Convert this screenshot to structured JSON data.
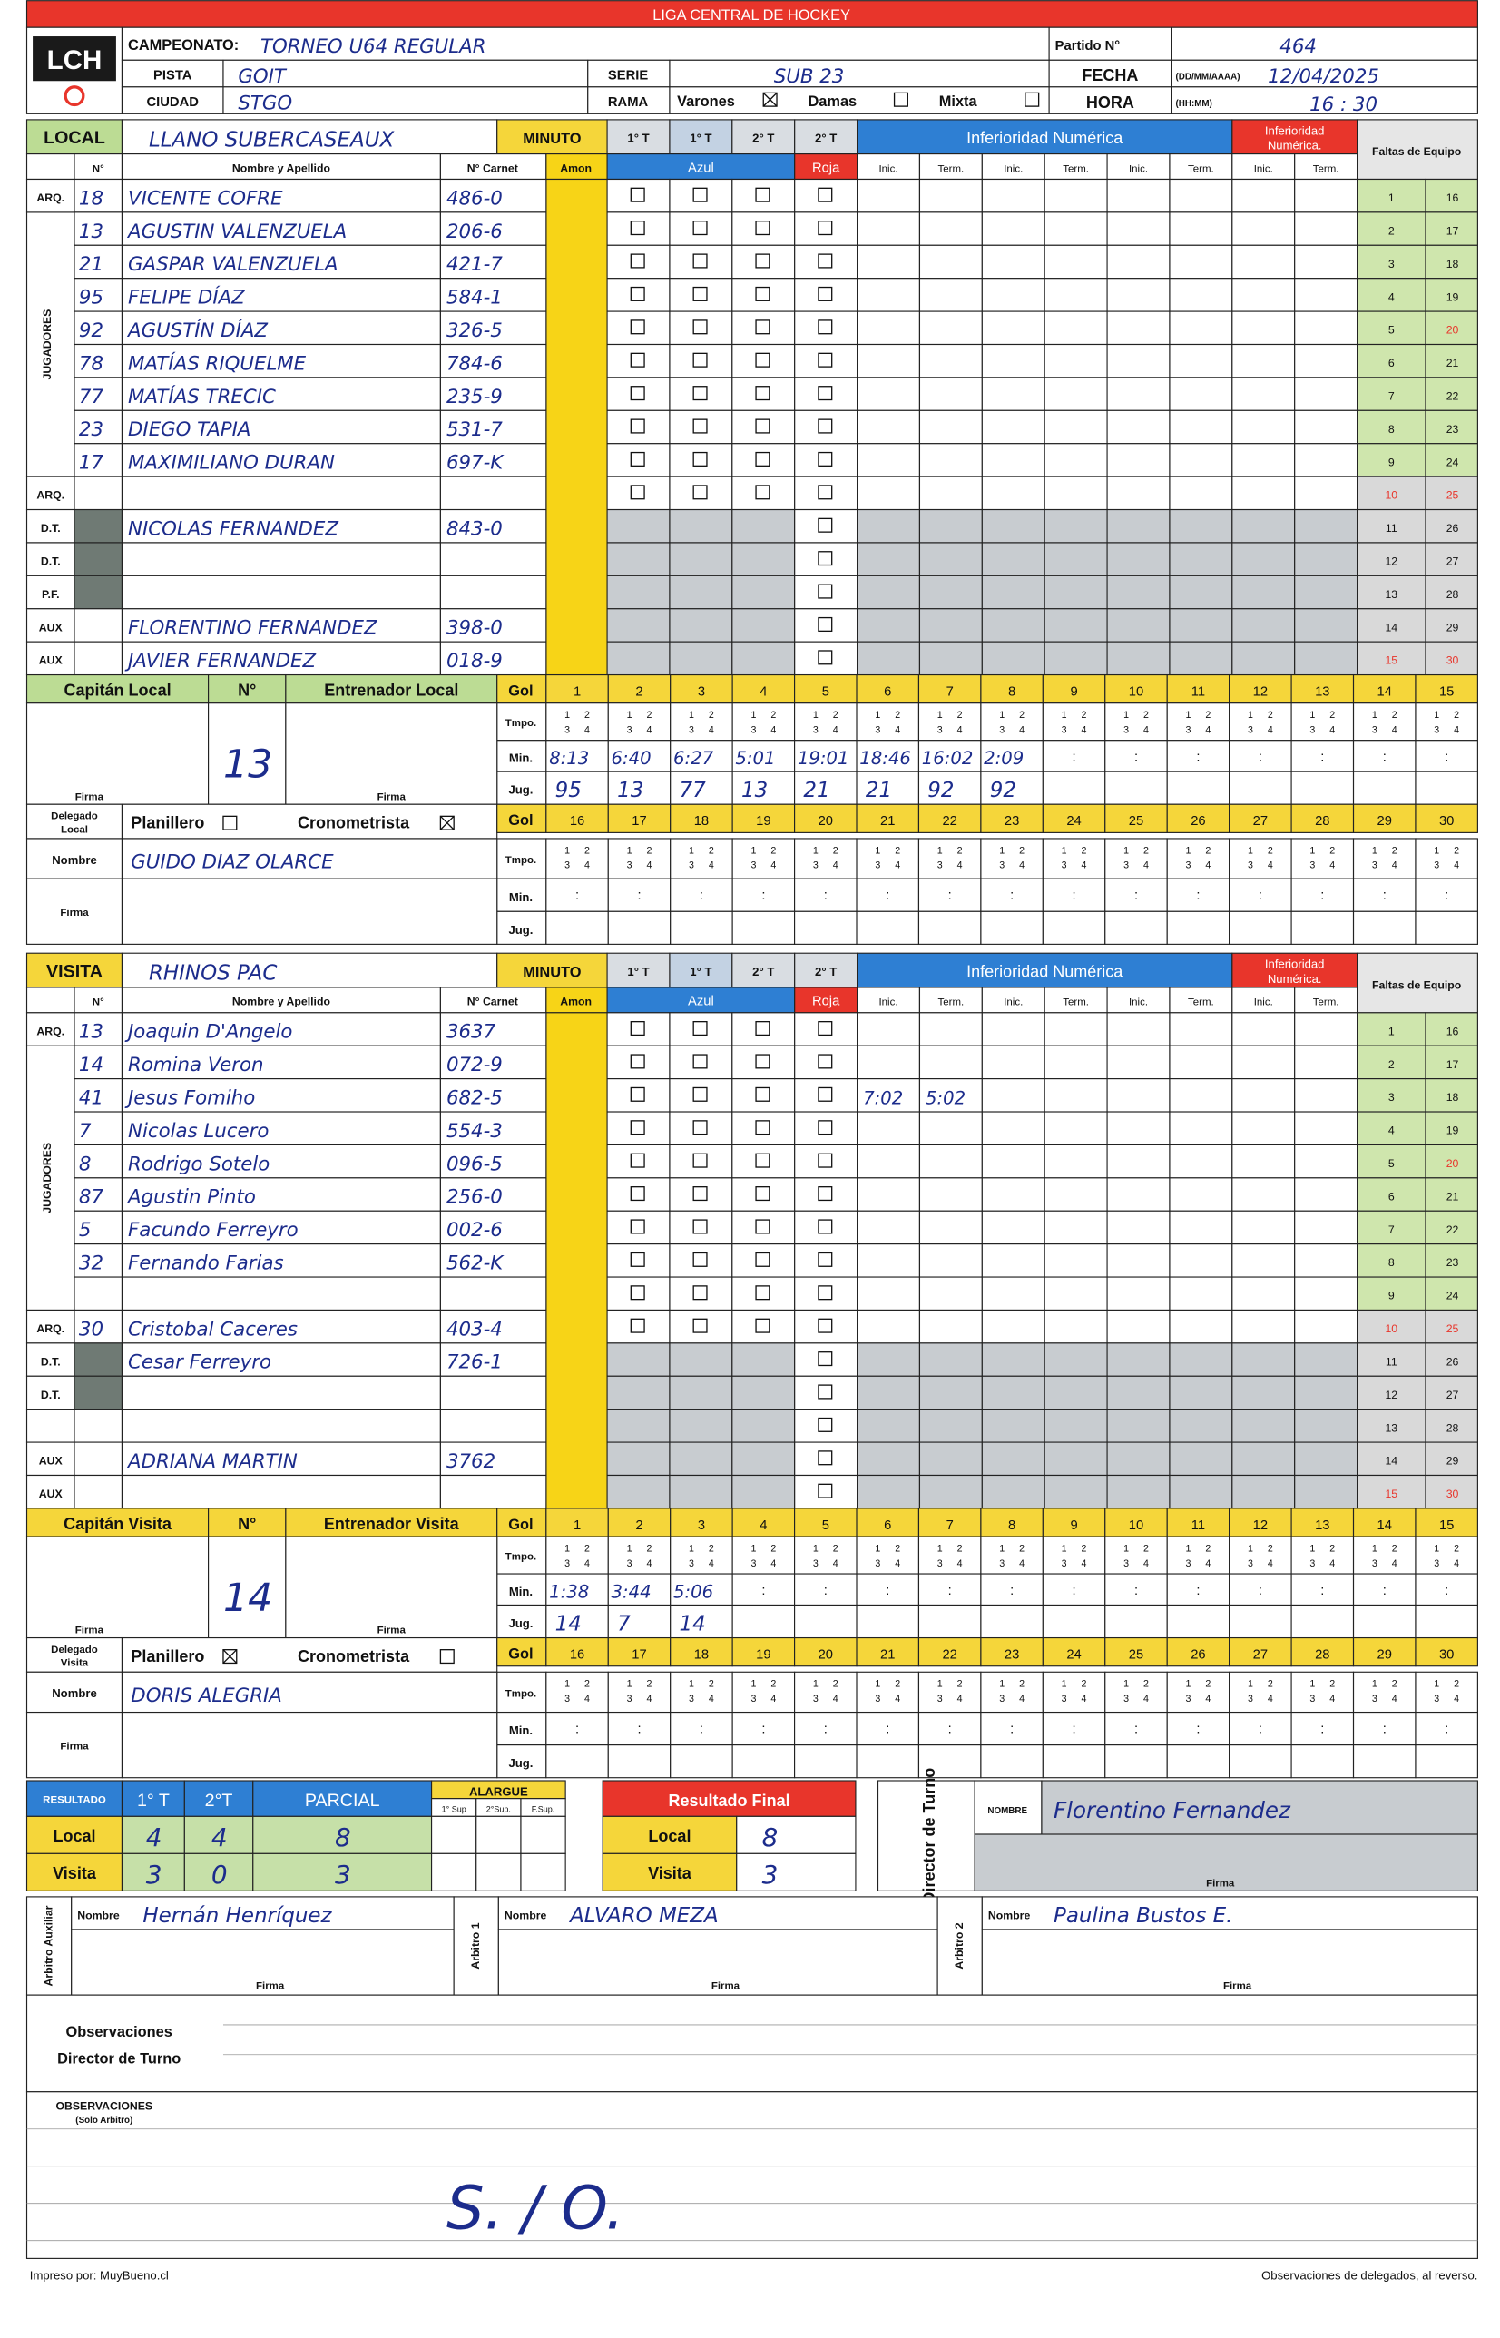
{
  "header": {
    "title": "LIGA CENTRAL DE HOCKEY",
    "logo": "LCH",
    "championship_label": "CAMPEONATO:",
    "championship": "TORNEO U64 REGULAR",
    "match_label": "Partido N°",
    "match_number": "464",
    "venue_label": "PISTA",
    "venue": "GOIT",
    "series_label": "SERIE",
    "series": "SUB 23",
    "date_label": "FECHA",
    "date_format": "(DD/MM/AAAA)",
    "date": "12/04/2025",
    "city_label": "CIUDAD",
    "city": "STGO",
    "branch_label": "RAMA",
    "gender_options": [
      {
        "label": "Varones",
        "checked": true
      },
      {
        "label": "Damas",
        "checked": false
      },
      {
        "label": "Mixta",
        "checked": false
      }
    ],
    "time_label": "HORA",
    "time_format": "(HH:MM)",
    "time": "16 : 30"
  },
  "sheet_labels": {
    "minute": "MINUTO",
    "periods": [
      "1° T",
      "1° T",
      "2° T",
      "2° T"
    ],
    "no": "N°",
    "name_header": "Nombre y Apellido",
    "id_header": "N° Carnet",
    "amon": "Amon",
    "azul": "Azul",
    "roja": "Roja",
    "inferiority": "Inferioridad Numérica",
    "inferiority_red": [
      "Inferioridad",
      "Numérica."
    ],
    "inic": "Inic.",
    "term": "Term.",
    "team_fouls": "Faltas de Equipo",
    "players_group": "JUGADORES",
    "goal": "Gol",
    "time": "Tmpo.",
    "min": "Min.",
    "player": "Jug.",
    "quarters": [
      1,
      2,
      3,
      4
    ],
    "colon": ":",
    "signature": "Firma",
    "nombre": "Nombre",
    "numbers": [
      1,
      2,
      3,
      4,
      5,
      6,
      7,
      8,
      9,
      10,
      11,
      12,
      13,
      14,
      15,
      16,
      17,
      18,
      19,
      20,
      21,
      22,
      23,
      24,
      25,
      26,
      27,
      28,
      29,
      30
    ]
  },
  "local": {
    "label": "LOCAL",
    "color": "#bcdc94",
    "team": "LLANO SUBERCASEAUX",
    "rows": [
      {
        "role": "ARQ.",
        "number": 18,
        "name": "VICENTE COFRE",
        "id": "486-0"
      },
      {
        "number": 13,
        "name": "AGUSTIN VALENZUELA",
        "id": "206-6"
      },
      {
        "number": 21,
        "name": "GASPAR VALENZUELA",
        "id": "421-7"
      },
      {
        "number": 95,
        "name": "FELIPE DÍAZ",
        "id": "584-1"
      },
      {
        "number": 92,
        "name": "AGUSTÍN DÍAZ",
        "id": "326-5"
      },
      {
        "number": 78,
        "name": "MATÍAS RIQUELME",
        "id": "784-6"
      },
      {
        "number": 77,
        "name": "MATÍAS TRECIC",
        "id": "235-9"
      },
      {
        "number": 23,
        "name": "DIEGO TAPIA",
        "id": "531-7"
      },
      {
        "number": 17,
        "name": "MAXIMILIANO DURAN",
        "id": "697-K"
      },
      {
        "role": "ARQ."
      },
      {
        "role": "D.T.",
        "name": "NICOLAS FERNANDEZ",
        "id": "843-0"
      },
      {
        "role": "D.T."
      },
      {
        "role": "P.F."
      },
      {
        "role": "AUX",
        "name": "FLORENTINO FERNANDEZ",
        "id": "398-0"
      },
      {
        "role": "AUX",
        "name": "JAVIER FERNANDEZ",
        "id": "018-9"
      }
    ],
    "captain_label": "Capitán Local",
    "coach_label": "Entrenador Local",
    "captain_number": 13,
    "goals": {
      "min": [
        "8:13",
        "6:40",
        "6:27",
        "5:01",
        "19:01",
        "18:46",
        "16:02",
        "2:09"
      ],
      "player": [
        95,
        13,
        77,
        13,
        21,
        21,
        92,
        92
      ]
    },
    "delegate_label": [
      "Delegado",
      "Local"
    ],
    "staff": [
      {
        "label": "Planillero",
        "checked": false
      },
      {
        "label": "Cronometrista",
        "checked": true
      }
    ],
    "delegate_name": "GUIDO DIAZ OLARCE"
  },
  "visita": {
    "label": "VISITA",
    "color": "#f5d63a",
    "team": "RHINOS PAC",
    "rows": [
      {
        "role": "ARQ.",
        "number": 13,
        "name": "Joaquin D'Angelo",
        "id": "3637"
      },
      {
        "number": 14,
        "name": "Romina Veron",
        "id": "072-9"
      },
      {
        "number": 41,
        "name": "Jesus Fomiho",
        "id": "682-5",
        "inferiority": [
          "7:02",
          "5:02"
        ]
      },
      {
        "number": 7,
        "name": "Nicolas Lucero",
        "id": "554-3"
      },
      {
        "number": 8,
        "name": "Rodrigo Sotelo",
        "id": "096-5"
      },
      {
        "number": 87,
        "name": "Agustin Pinto",
        "id": "256-0"
      },
      {
        "number": 5,
        "name": "Facundo Ferreyro",
        "id": "002-6"
      },
      {
        "number": 32,
        "name": "Fernando Farias",
        "id": "562-K"
      },
      {},
      {
        "role": "ARQ.",
        "number": 30,
        "name": "Cristobal Caceres",
        "id": "403-4"
      },
      {
        "role": "D.T.",
        "name": "Cesar Ferreyro",
        "id": "726-1"
      },
      {
        "role": "D.T."
      },
      {},
      {
        "role": "AUX",
        "name": "ADRIANA MARTIN",
        "id": "3762"
      },
      {
        "role": "AUX"
      }
    ],
    "captain_label": "Capitán Visita",
    "coach_label": "Entrenador Visita",
    "captain_number": 14,
    "goals": {
      "min": [
        "1:38",
        "3:44",
        "5:06"
      ],
      "player": [
        14,
        7,
        14
      ]
    },
    "delegate_label": [
      "Delegado",
      "Visita"
    ],
    "staff": [
      {
        "label": "Planillero",
        "checked": true
      },
      {
        "label": "Cronometrista",
        "checked": false
      }
    ],
    "delegate_name": "DORIS ALEGRIA"
  },
  "results": {
    "label": "RESULTADO",
    "columns": [
      "1° T",
      "2°T",
      "PARCIAL"
    ],
    "overtime": "ALARGUE",
    "overtime_columns": [
      "1° Sup",
      "2°Sup.",
      "F.Sup."
    ],
    "final_label": "Resultado Final",
    "rows": [
      {
        "team": "Local",
        "scores": [
          4,
          4,
          8
        ],
        "final": 8
      },
      {
        "team": "Visita",
        "scores": [
          3,
          0,
          3
        ],
        "final": 3
      }
    ]
  },
  "director": {
    "label": "Director de Turno",
    "name_label": "NOMBRE",
    "name": "Florentino Fernandez",
    "signature_label": "Firma"
  },
  "referees": [
    {
      "role": "Arbitro Auxiliar",
      "name_label": "Nombre",
      "name": "Hernán Henríquez",
      "signature_label": "Firma"
    },
    {
      "role": "Arbitro 1",
      "name_label": "Nombre",
      "name": "ALVARO MEZA",
      "signature_label": "Firma"
    },
    {
      "role": "Arbitro 2",
      "name_label": "Nombre",
      "name": "Paulina Bustos E.",
      "signature_label": "Firma"
    }
  ],
  "observations": {
    "director_label": [
      "Observaciones",
      "Director de Turno"
    ],
    "referee_label": [
      "OBSERVACIONES",
      "(Solo Arbitro)"
    ],
    "referee_note": "S. / O."
  },
  "footer": {
    "printed_by": "Impreso por: MuyBueno.cl",
    "note": "Observaciones de delegados, al reverso."
  }
}
